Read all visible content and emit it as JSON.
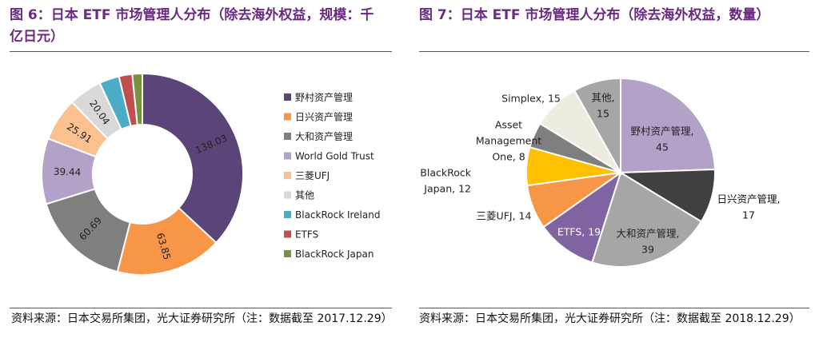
{
  "left": {
    "title": "图 6：日本 ETF 市场管理人分布（除去海外权益，规模：千亿日元）",
    "source": "资料来源：日本交易所集团，光大证券研究所（注：数据截至 2017.12.29）"
  },
  "right": {
    "title": "图 7：日本 ETF 市场管理人分布（除去海外权益，数量）",
    "source": "资料来源：日本交易所集团，光大证券研究所（注：数据截至 2018.12.29）"
  },
  "chart_data": [
    {
      "type": "donut",
      "legend_position": "right",
      "categories": [
        "野村资产管理",
        "日兴资产管理",
        "大和资产管理",
        "World Gold Trust",
        "三菱UFJ",
        "其他",
        "BlackRock Ireland",
        "ETFS",
        "BlackRock Japan"
      ],
      "values": [
        138.03,
        63.85,
        60.69,
        39.44,
        25.91,
        20.04,
        12,
        8,
        6
      ],
      "data_labels": [
        "138.03",
        "63.85",
        "60.69",
        "39.44",
        "25.91",
        "20.04",
        "",
        "",
        ""
      ],
      "colors": [
        "#5b4478",
        "#f79646",
        "#7f7f7f",
        "#b2a2c7",
        "#fac090",
        "#d9d9d9",
        "#4bacc6",
        "#c0504d",
        "#77933c"
      ]
    },
    {
      "type": "pie",
      "categories": [
        "野村资产管理",
        "日兴资产管理",
        "大和资产管理",
        "ETFS",
        "三菱UFJ",
        "BlackRock Japan",
        "Asset Management One",
        "Simplex",
        "其他"
      ],
      "values": [
        45,
        17,
        39,
        19,
        14,
        12,
        8,
        15,
        15
      ],
      "labels": [
        [
          "野村资产管理,",
          "45"
        ],
        [
          "日兴资产管理,",
          "17"
        ],
        [
          "大和资产管理,",
          "39"
        ],
        [
          "ETFS, 19"
        ],
        [
          "三菱UFJ, 14"
        ],
        [
          "BlackRock",
          "Japan, 12"
        ],
        [
          "Asset",
          "Management",
          "One, 8"
        ],
        [
          "Simplex, 15"
        ],
        [
          "其他,",
          "15"
        ]
      ],
      "colors": [
        "#b2a2c7",
        "#404040",
        "#a6a6a6",
        "#8064a2",
        "#f79646",
        "#ffc000",
        "#7f7f7f",
        "#eeece1",
        "#a6a6a6"
      ]
    }
  ]
}
